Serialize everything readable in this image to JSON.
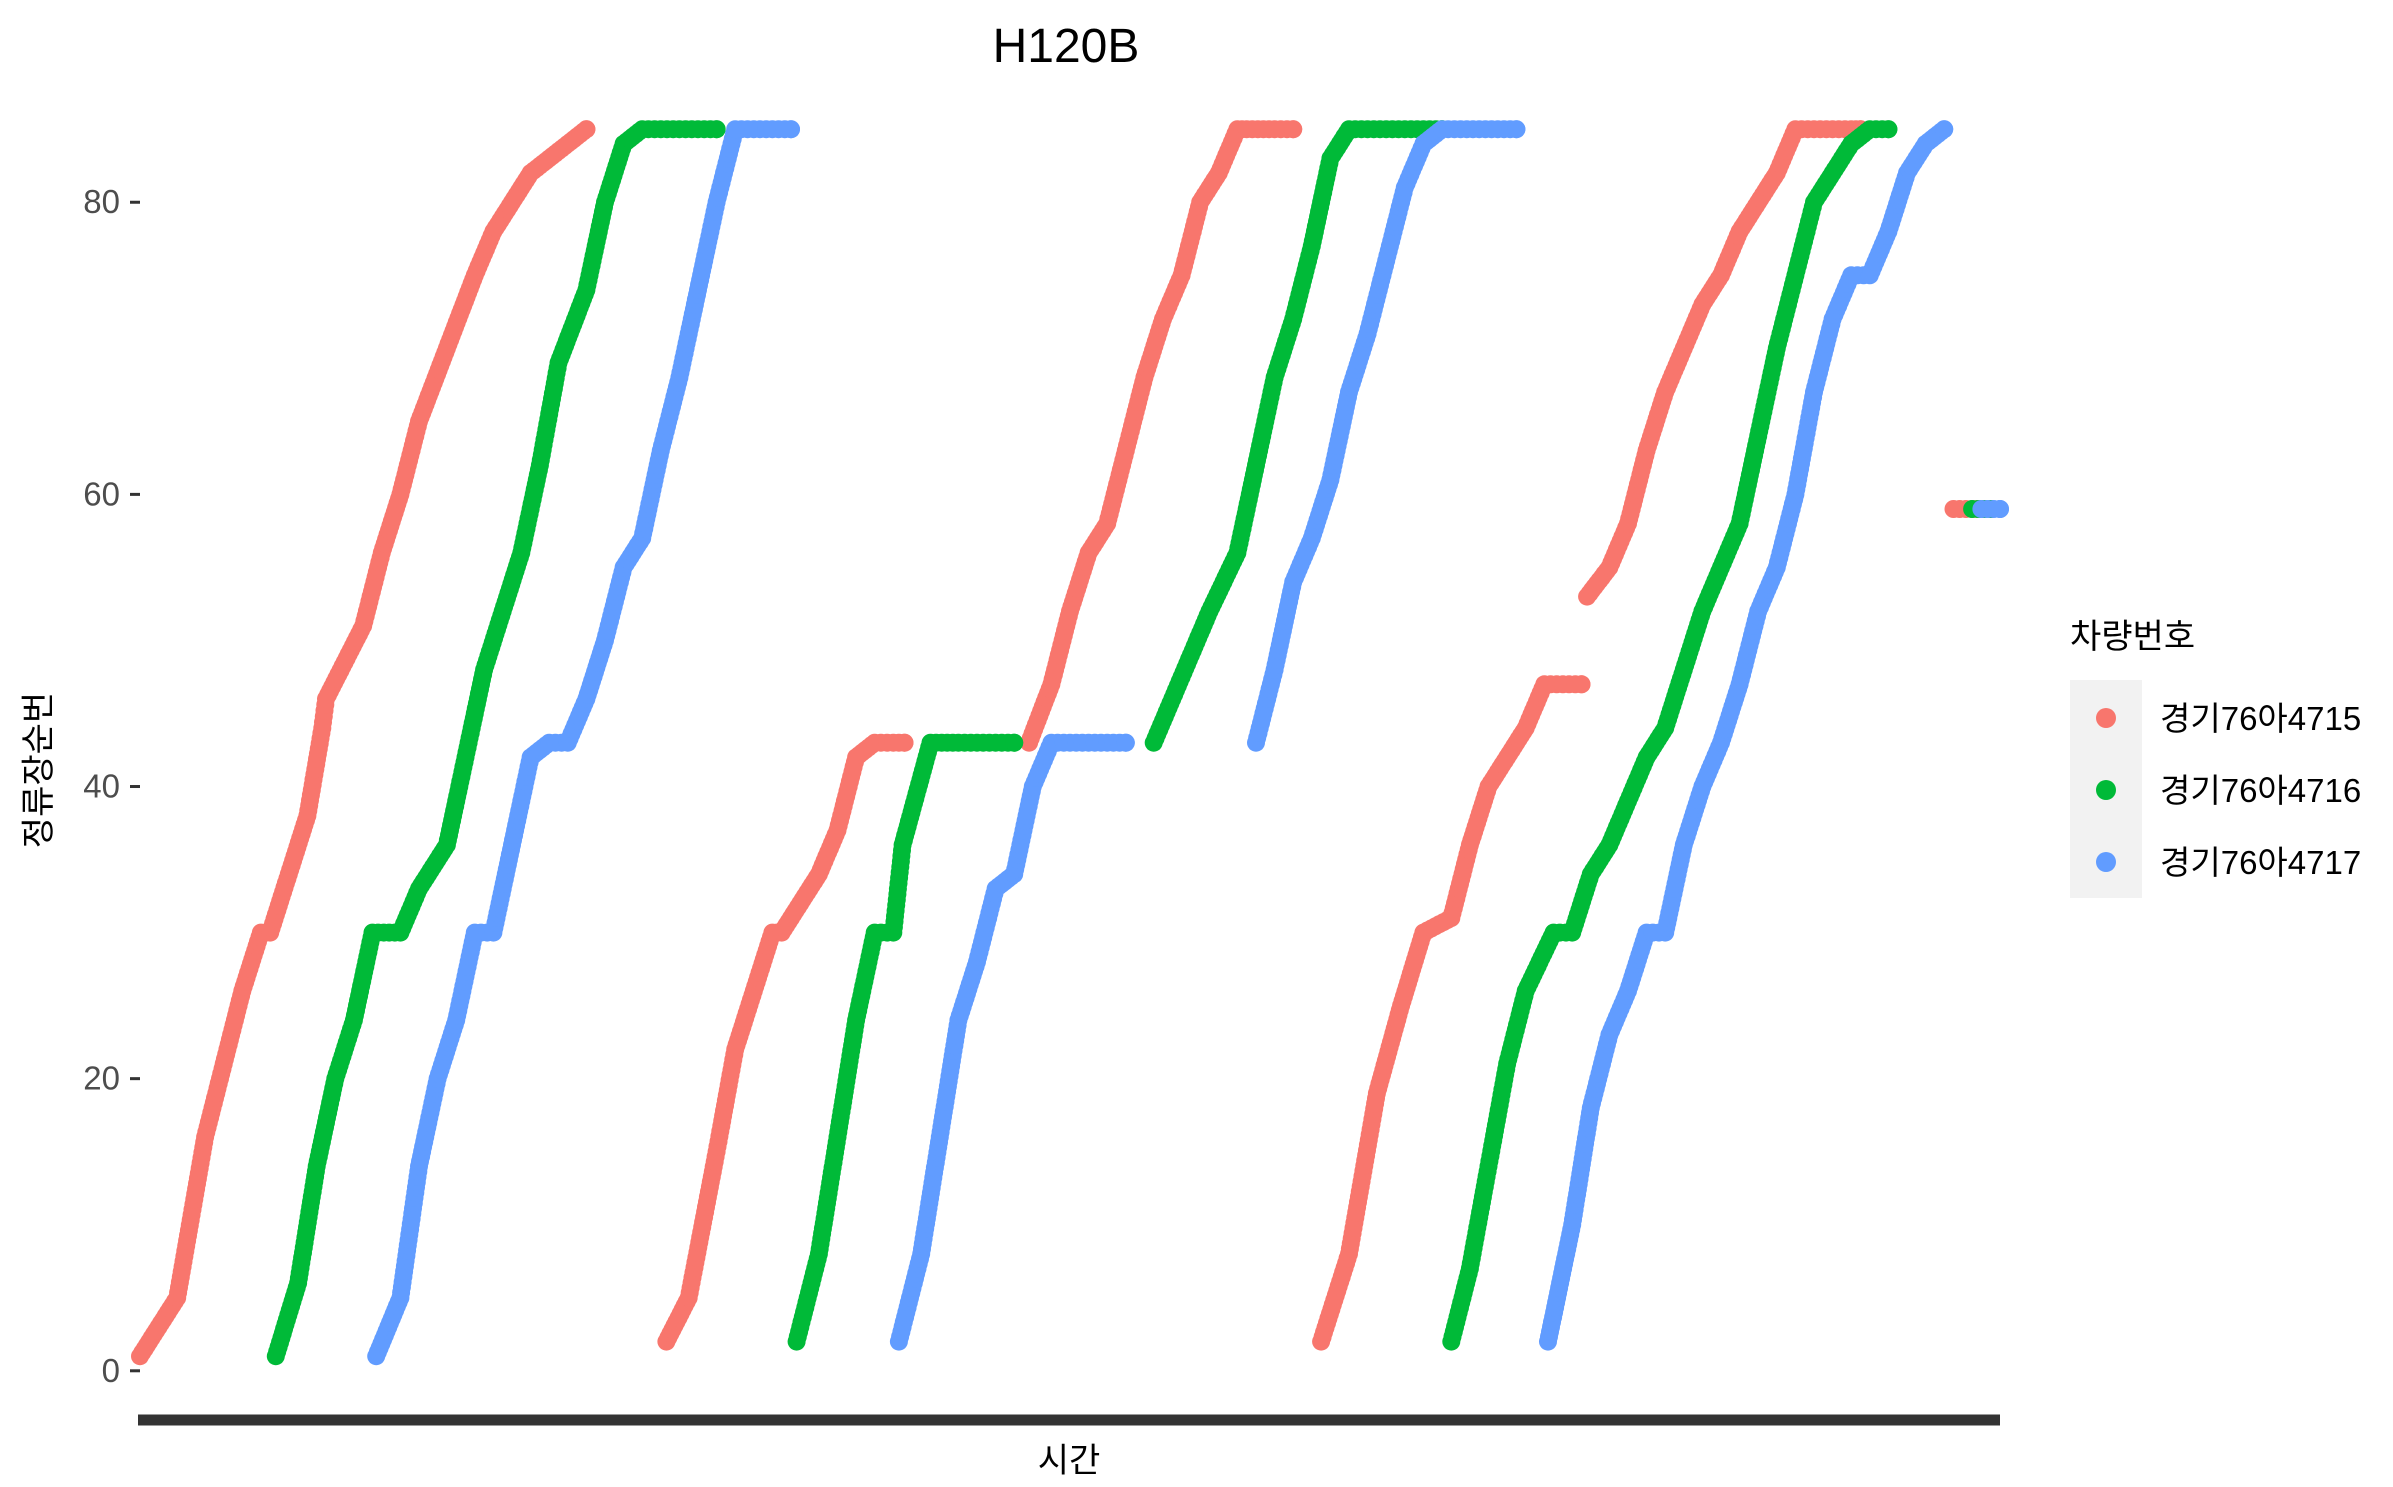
{
  "chart_data": {
    "type": "scatter",
    "title": "H120B",
    "xlabel": "시간",
    "ylabel": "정류장순번",
    "ylim": [
      -2,
      87
    ],
    "yticks": [
      0,
      20,
      40,
      60,
      80
    ],
    "x_axis_ticks": "none",
    "grid": false,
    "legend": {
      "title": "차량번호",
      "position": "right"
    },
    "series": [
      {
        "name": "경기76아4715",
        "color": "#F8766D",
        "runs": [
          {
            "x": [
              0.0,
              0.02,
              0.035,
              0.045,
              0.055,
              0.065,
              0.07,
              0.08,
              0.09,
              0.098,
              0.1,
              0.12,
              0.13,
              0.14,
              0.15,
              0.165,
              0.18,
              0.19,
              0.2,
              0.21,
              0.22,
              0.23,
              0.24
            ],
            "y": [
              1,
              5,
              16,
              21,
              26,
              30,
              30,
              34,
              38,
              44,
              46,
              51,
              56,
              60,
              65,
              70,
              75,
              78,
              80,
              82,
              83,
              84,
              85
            ]
          },
          {
            "x": [
              0.283,
              0.295,
              0.31,
              0.32,
              0.33,
              0.34,
              0.345,
              0.365,
              0.375,
              0.385,
              0.395,
              0.405,
              0.408,
              0.411
            ],
            "y": [
              2,
              5,
              15,
              22,
              26,
              30,
              30,
              34,
              37,
              42,
              43,
              43,
              43,
              43
            ]
          },
          {
            "x": [
              0.478,
              0.49,
              0.5,
              0.51,
              0.52,
              0.53,
              0.54,
              0.55,
              0.56,
              0.57,
              0.58,
              0.59,
              0.595,
              0.61,
              0.62
            ],
            "y": [
              43,
              47,
              52,
              56,
              58,
              63,
              68,
              72,
              75,
              80,
              82,
              85,
              85,
              85,
              85
            ]
          },
          {
            "x": [
              0.635,
              0.65,
              0.665,
              0.678,
              0.69,
              0.705,
              0.715,
              0.725,
              0.735,
              0.745,
              0.755,
              0.765,
              0.775
            ],
            "y": [
              2,
              8,
              19,
              25,
              30,
              31,
              36,
              40,
              42,
              44,
              47,
              47,
              47
            ]
          },
          {
            "x": [
              0.778,
              0.79,
              0.8,
              0.81,
              0.82,
              0.83,
              0.84,
              0.85,
              0.86,
              0.87,
              0.88,
              0.89,
              0.9,
              0.91,
              0.92,
              0.925
            ],
            "y": [
              53,
              55,
              58,
              63,
              67,
              70,
              73,
              75,
              78,
              80,
              82,
              85,
              85,
              85,
              85,
              85
            ]
          },
          {
            "x": [
              0.975,
              0.985,
              0.99
            ],
            "y": [
              59,
              59,
              59
            ]
          }
        ]
      },
      {
        "name": "경기76아4716",
        "color": "#00BA38",
        "runs": [
          {
            "x": [
              0.073,
              0.085,
              0.095,
              0.105,
              0.115,
              0.125,
              0.14,
              0.15,
              0.165,
              0.175,
              0.185,
              0.195,
              0.205,
              0.215,
              0.225,
              0.24,
              0.25,
              0.26,
              0.27,
              0.28,
              0.29,
              0.3,
              0.31
            ],
            "y": [
              1,
              6,
              14,
              20,
              24,
              30,
              30,
              33,
              36,
              42,
              48,
              52,
              56,
              62,
              69,
              74,
              80,
              84,
              85,
              85,
              85,
              85,
              85
            ]
          },
          {
            "x": [
              0.353,
              0.365,
              0.375,
              0.385,
              0.395,
              0.405,
              0.41,
              0.425,
              0.44,
              0.45,
              0.46,
              0.47
            ],
            "y": [
              2,
              8,
              16,
              24,
              30,
              30,
              36,
              43,
              43,
              43,
              43,
              43
            ]
          },
          {
            "x": [
              0.545,
              0.555,
              0.565,
              0.575,
              0.59,
              0.6,
              0.61,
              0.62,
              0.63,
              0.64,
              0.65,
              0.66,
              0.67,
              0.68,
              0.69,
              0.7
            ],
            "y": [
              43,
              46,
              49,
              52,
              56,
              62,
              68,
              72,
              77,
              83,
              85,
              85,
              85,
              85,
              85,
              85
            ]
          },
          {
            "x": [
              0.705,
              0.715,
              0.725,
              0.735,
              0.745,
              0.76,
              0.77,
              0.78,
              0.79,
              0.8,
              0.81,
              0.82,
              0.83,
              0.84,
              0.85,
              0.86,
              0.87,
              0.88,
              0.89,
              0.9,
              0.91,
              0.92,
              0.93,
              0.94
            ],
            "y": [
              2,
              7,
              14,
              21,
              26,
              30,
              30,
              34,
              36,
              39,
              42,
              44,
              48,
              52,
              55,
              58,
              64,
              70,
              75,
              80,
              82,
              84,
              85,
              85
            ]
          },
          {
            "x": [
              0.985,
              0.995
            ],
            "y": [
              59,
              59
            ]
          }
        ]
      },
      {
        "name": "경기76아4717",
        "color": "#619CFF",
        "runs": [
          {
            "x": [
              0.127,
              0.14,
              0.15,
              0.16,
              0.17,
              0.18,
              0.19,
              0.2,
              0.21,
              0.22,
              0.23,
              0.24,
              0.25,
              0.26,
              0.27,
              0.28,
              0.29,
              0.3,
              0.31,
              0.32,
              0.33,
              0.34,
              0.35
            ],
            "y": [
              1,
              5,
              14,
              20,
              24,
              30,
              30,
              36,
              42,
              43,
              43,
              46,
              50,
              55,
              57,
              63,
              68,
              74,
              80,
              85,
              85,
              85,
              85
            ]
          },
          {
            "x": [
              0.408,
              0.42,
              0.43,
              0.44,
              0.45,
              0.46,
              0.47,
              0.48,
              0.49,
              0.5,
              0.51,
              0.52,
              0.53
            ],
            "y": [
              2,
              8,
              16,
              24,
              28,
              33,
              34,
              40,
              43,
              43,
              43,
              43,
              43
            ]
          },
          {
            "x": [
              0.6,
              0.61,
              0.62,
              0.63,
              0.64,
              0.65,
              0.66,
              0.67,
              0.68,
              0.69,
              0.7,
              0.71,
              0.72,
              0.73,
              0.74
            ],
            "y": [
              43,
              48,
              54,
              57,
              61,
              67,
              71,
              76,
              81,
              84,
              85,
              85,
              85,
              85,
              85
            ]
          },
          {
            "x": [
              0.757,
              0.77,
              0.78,
              0.79,
              0.8,
              0.81,
              0.82,
              0.83,
              0.84,
              0.85,
              0.86,
              0.87,
              0.88,
              0.89,
              0.9,
              0.91,
              0.92,
              0.93,
              0.94,
              0.95,
              0.96,
              0.97
            ],
            "y": [
              2,
              10,
              18,
              23,
              26,
              30,
              30,
              36,
              40,
              43,
              47,
              52,
              55,
              60,
              67,
              72,
              75,
              75,
              78,
              82,
              84,
              85
            ]
          },
          {
            "x": [
              0.99,
              1.0
            ],
            "y": [
              59,
              59
            ]
          }
        ]
      }
    ]
  }
}
